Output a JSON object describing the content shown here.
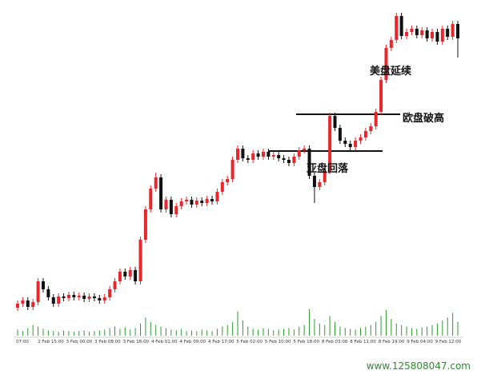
{
  "chart_data": {
    "type": "candlestick",
    "open": [
      65,
      70,
      74,
      66,
      72,
      98,
      88,
      78,
      70,
      79,
      77,
      81,
      78,
      80,
      76,
      79,
      77,
      74,
      78,
      88,
      98,
      110,
      104,
      112,
      98,
      150,
      188,
      214,
      228,
      188,
      200,
      182,
      192,
      198,
      200,
      194,
      199,
      196,
      201,
      198,
      210,
      222,
      226,
      250,
      264,
      252,
      250,
      258,
      254,
      260,
      254,
      256,
      252,
      250,
      246,
      254,
      262,
      264,
      230,
      216,
      222,
      236,
      305,
      290,
      274,
      270,
      266,
      274,
      278,
      286,
      292,
      310,
      350,
      390,
      400,
      430,
      405,
      410,
      414,
      406,
      412,
      402,
      410,
      398,
      414,
      404,
      420
    ],
    "high": [
      74,
      78,
      78,
      76,
      102,
      102,
      92,
      82,
      83,
      83,
      85,
      85,
      84,
      84,
      83,
      83,
      81,
      82,
      92,
      102,
      114,
      114,
      116,
      116,
      154,
      192,
      218,
      234,
      232,
      204,
      204,
      196,
      202,
      204,
      204,
      203,
      203,
      205,
      205,
      214,
      226,
      230,
      254,
      268,
      268,
      256,
      262,
      262,
      264,
      264,
      260,
      260,
      256,
      254,
      258,
      266,
      268,
      268,
      234,
      226,
      240,
      309,
      309,
      294,
      278,
      274,
      278,
      282,
      290,
      296,
      314,
      354,
      394,
      404,
      434,
      434,
      414,
      418,
      418,
      416,
      416,
      414,
      414,
      418,
      418,
      424,
      424
    ],
    "low": [
      61,
      66,
      62,
      62,
      68,
      84,
      74,
      66,
      66,
      73,
      73,
      74,
      74,
      72,
      72,
      73,
      70,
      70,
      74,
      84,
      94,
      100,
      100,
      94,
      94,
      146,
      184,
      210,
      184,
      184,
      178,
      178,
      188,
      194,
      190,
      190,
      192,
      192,
      194,
      194,
      206,
      218,
      222,
      246,
      248,
      246,
      246,
      250,
      250,
      250,
      250,
      248,
      246,
      242,
      242,
      250,
      258,
      226,
      196,
      212,
      218,
      232,
      286,
      270,
      266,
      262,
      262,
      270,
      274,
      282,
      288,
      306,
      346,
      386,
      396,
      401,
      401,
      406,
      402,
      402,
      398,
      398,
      394,
      394,
      400,
      400,
      378
    ],
    "close": [
      70,
      74,
      66,
      72,
      98,
      88,
      78,
      70,
      79,
      77,
      81,
      78,
      80,
      76,
      79,
      77,
      74,
      78,
      88,
      98,
      110,
      104,
      112,
      98,
      150,
      188,
      214,
      228,
      188,
      200,
      182,
      192,
      198,
      200,
      194,
      199,
      196,
      201,
      198,
      210,
      222,
      226,
      250,
      264,
      252,
      250,
      258,
      254,
      260,
      254,
      256,
      252,
      250,
      246,
      254,
      262,
      264,
      230,
      216,
      222,
      236,
      305,
      290,
      274,
      270,
      266,
      274,
      278,
      286,
      292,
      310,
      350,
      390,
      400,
      430,
      405,
      410,
      414,
      406,
      412,
      402,
      410,
      398,
      414,
      404,
      420,
      402
    ],
    "ylim": [
      0,
      450
    ],
    "up_color": "#e8262b",
    "down_color": "#111111",
    "volume": {
      "color": "#2e9a2e",
      "ylim": [
        0,
        40
      ],
      "values": [
        8,
        6,
        10,
        14,
        12,
        9,
        7,
        6,
        5,
        7,
        6,
        5,
        6,
        7,
        5,
        6,
        7,
        8,
        10,
        12,
        9,
        11,
        8,
        10,
        16,
        24,
        18,
        14,
        12,
        10,
        8,
        7,
        9,
        6,
        7,
        6,
        8,
        7,
        6,
        9,
        12,
        14,
        18,
        32,
        20,
        12,
        9,
        8,
        10,
        9,
        7,
        8,
        9,
        10,
        8,
        12,
        14,
        35,
        22,
        16,
        14,
        26,
        18,
        12,
        10,
        9,
        8,
        10,
        12,
        14,
        18,
        26,
        34,
        22,
        16,
        14,
        12,
        10,
        9,
        11,
        12,
        14,
        16,
        20,
        24,
        30,
        18
      ]
    },
    "xlabels": [
      "07:00",
      "2 Feb 15:00",
      "3 Feb 00:00",
      "3 Feb 08:00",
      "3 Feb 16:00",
      "4 Feb 01:00",
      "4 Feb 09:00",
      "4 Feb 17:00",
      "5 Feb 02:00",
      "5 Feb 10:00",
      "5 Feb 18:00",
      "8 Feb 03:00",
      "8 Feb 11:00",
      "8 Feb 19:00",
      "9 Feb 04:00",
      "9 Feb 12:00"
    ],
    "annotations": [
      "美盘延续",
      "欧盘破高",
      "亚盘回落"
    ]
  },
  "watermark": "www.125808047.com"
}
